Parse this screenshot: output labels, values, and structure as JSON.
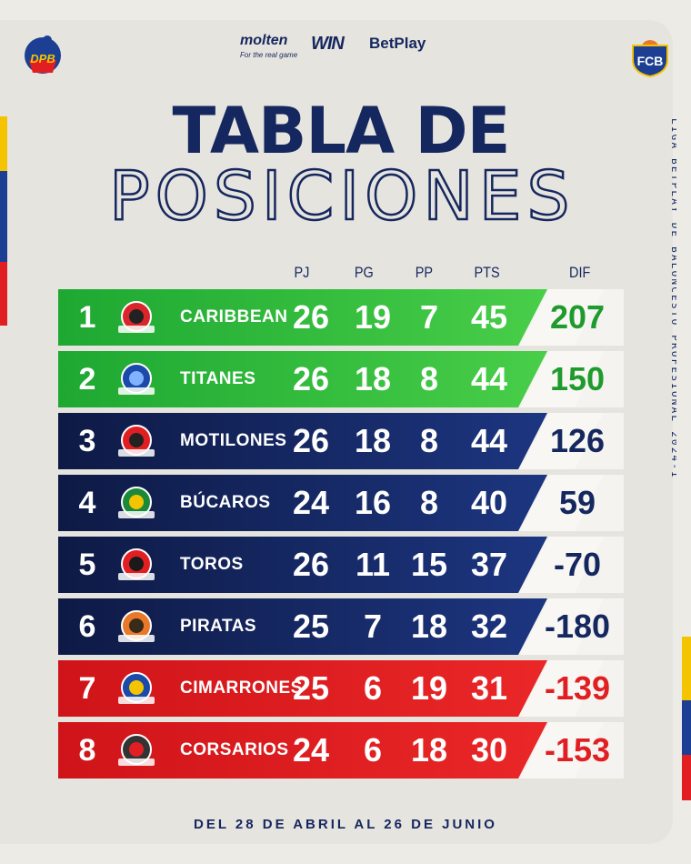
{
  "sponsors": {
    "molten": "molten",
    "molten_tag": "For the real game",
    "win": "WIN",
    "betplay": "BetPlay"
  },
  "logos": {
    "left": "DPB",
    "right": "FCB"
  },
  "title": {
    "line1": "TABLA DE",
    "line2": "POSICIONES"
  },
  "side_text": "LIGA BETPLAY DE BALONCESTO PROFESIONAL 2024-I",
  "headers": {
    "pj": "PJ",
    "pg": "PG",
    "pp": "PP",
    "pts": "PTS",
    "dif": "DIF"
  },
  "colors": {
    "green": "#2db83a",
    "navy": "#15275f",
    "red": "#e11f23",
    "white": "#ffffff"
  },
  "rows": [
    {
      "rank": "1",
      "team": "CARIBBEAN",
      "logo_icon": "caribbean-storm-logo",
      "pj": "26",
      "pg": "19",
      "pp": "7",
      "pts": "45",
      "dif": "207",
      "zone": "green"
    },
    {
      "rank": "2",
      "team": "TITANES",
      "logo_icon": "titanes-logo",
      "pj": "26",
      "pg": "18",
      "pp": "8",
      "pts": "44",
      "dif": "150",
      "zone": "green"
    },
    {
      "rank": "3",
      "team": "MOTILONES",
      "logo_icon": "motilones-logo",
      "pj": "26",
      "pg": "18",
      "pp": "8",
      "pts": "44",
      "dif": "126",
      "zone": "navy"
    },
    {
      "rank": "4",
      "team": "BÚCAROS",
      "logo_icon": "bucaros-logo",
      "pj": "24",
      "pg": "16",
      "pp": "8",
      "pts": "40",
      "dif": "59",
      "zone": "navy"
    },
    {
      "rank": "5",
      "team": "TOROS",
      "logo_icon": "toros-logo",
      "pj": "26",
      "pg": "11",
      "pp": "15",
      "pts": "37",
      "dif": "-70",
      "zone": "navy"
    },
    {
      "rank": "6",
      "team": "PIRATAS",
      "logo_icon": "piratas-logo",
      "pj": "25",
      "pg": "7",
      "pp": "18",
      "pts": "32",
      "dif": "-180",
      "zone": "navy"
    },
    {
      "rank": "7",
      "team": "CIMARRONES",
      "logo_icon": "cimarrones-logo",
      "pj": "25",
      "pg": "6",
      "pp": "19",
      "pts": "31",
      "dif": "-139",
      "zone": "red"
    },
    {
      "rank": "8",
      "team": "CORSARIOS",
      "logo_icon": "corsarios-logo",
      "pj": "24",
      "pg": "6",
      "pp": "18",
      "pts": "30",
      "dif": "-153",
      "zone": "red"
    }
  ],
  "footer": "DEL 28 DE ABRIL AL 26 DE JUNIO"
}
